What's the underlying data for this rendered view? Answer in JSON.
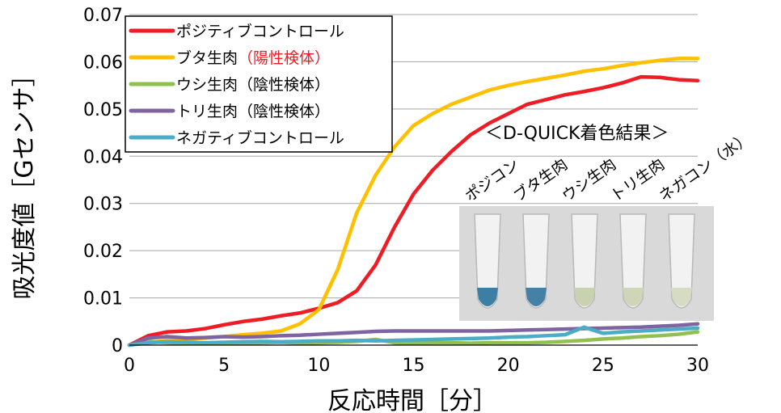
{
  "chart_data": {
    "type": "line",
    "xlabel": "反応時間［分］",
    "ylabel": "吸光度値［Gセンサ］",
    "xlim": [
      0,
      30
    ],
    "ylim": [
      0,
      0.07
    ],
    "x_ticks": [
      "0",
      "5",
      "10",
      "15",
      "20",
      "25",
      "30"
    ],
    "y_ticks": [
      "0",
      "0.01",
      "0.02",
      "0.03",
      "0.04",
      "0.05",
      "0.06",
      "0.07"
    ],
    "grid": true,
    "legend_position": "top-left",
    "x": [
      0,
      1,
      2,
      3,
      4,
      5,
      6,
      7,
      8,
      9,
      10,
      11,
      12,
      13,
      14,
      15,
      16,
      17,
      18,
      19,
      20,
      21,
      22,
      23,
      24,
      25,
      26,
      27,
      28,
      29,
      30
    ],
    "series": [
      {
        "name": "ポジティブコントロール",
        "name_note": "",
        "color": "#ee1c25",
        "values": [
          0.0,
          0.002,
          0.0028,
          0.003,
          0.0035,
          0.0043,
          0.005,
          0.0055,
          0.0062,
          0.0068,
          0.0078,
          0.009,
          0.0115,
          0.017,
          0.025,
          0.032,
          0.037,
          0.041,
          0.0445,
          0.047,
          0.049,
          0.051,
          0.052,
          0.053,
          0.0537,
          0.0545,
          0.0555,
          0.0568,
          0.0567,
          0.0562,
          0.056
        ]
      },
      {
        "name": "ブタ生肉",
        "name_note": "（陽性検体）",
        "color": "#ffc000",
        "values": [
          0.0,
          0.0005,
          0.001,
          0.0012,
          0.0015,
          0.0018,
          0.0022,
          0.0025,
          0.003,
          0.0045,
          0.0075,
          0.016,
          0.028,
          0.036,
          0.042,
          0.0465,
          0.049,
          0.051,
          0.0525,
          0.054,
          0.055,
          0.0558,
          0.0565,
          0.0572,
          0.058,
          0.0585,
          0.0592,
          0.0598,
          0.0603,
          0.0607,
          0.0607
        ]
      },
      {
        "name": "ウシ生肉",
        "name_note": "（陰性検体）",
        "color": "#92c050",
        "values": [
          0.0,
          0.0008,
          0.0005,
          0.0004,
          0.0004,
          0.0005,
          0.0004,
          0.0005,
          0.0006,
          0.0004,
          0.0005,
          0.0006,
          0.0008,
          0.0012,
          0.0005,
          0.0004,
          0.0005,
          0.0005,
          0.0004,
          0.0005,
          0.0005,
          0.0005,
          0.0006,
          0.0008,
          0.001,
          0.0013,
          0.0015,
          0.0018,
          0.002,
          0.0023,
          0.0028
        ]
      },
      {
        "name": "トリ生肉",
        "name_note": "（陰性検体）",
        "color": "#8064a2",
        "values": [
          0.0,
          0.0015,
          0.0018,
          0.0015,
          0.0016,
          0.0018,
          0.0017,
          0.0018,
          0.002,
          0.0021,
          0.0023,
          0.0025,
          0.0027,
          0.0029,
          0.003,
          0.003,
          0.003,
          0.003,
          0.003,
          0.003,
          0.0031,
          0.0032,
          0.0033,
          0.0034,
          0.0035,
          0.0036,
          0.0037,
          0.0038,
          0.004,
          0.0042,
          0.0045
        ]
      },
      {
        "name": "ネガティブコントロール",
        "name_note": "",
        "color": "#4bacc6",
        "values": [
          0.0,
          0.0005,
          0.0007,
          0.0006,
          0.0005,
          0.0006,
          0.0007,
          0.0008,
          0.0007,
          0.0008,
          0.0009,
          0.0009,
          0.001,
          0.0009,
          0.001,
          0.0011,
          0.0012,
          0.0013,
          0.0014,
          0.0015,
          0.0017,
          0.0018,
          0.002,
          0.0022,
          0.0038,
          0.0025,
          0.0028,
          0.003,
          0.0032,
          0.0034,
          0.0036
        ]
      }
    ]
  },
  "inset": {
    "title": "＜D-QUICK着色結果＞",
    "tubes": [
      {
        "label": "ポジコン",
        "color": "#3d7fa4"
      },
      {
        "label": "ブタ生肉",
        "color": "#4680a6"
      },
      {
        "label": "ウシ生肉",
        "color": "#c9d2b0"
      },
      {
        "label": "トリ生肉",
        "color": "#cfd6b8"
      },
      {
        "label": "ネガコン（水）",
        "color": "#d5dcc3"
      }
    ]
  },
  "colors": {
    "legend_note": "#ee1c25",
    "grid": "#a6a6a6",
    "photo_bg": "#d9d9d9"
  }
}
